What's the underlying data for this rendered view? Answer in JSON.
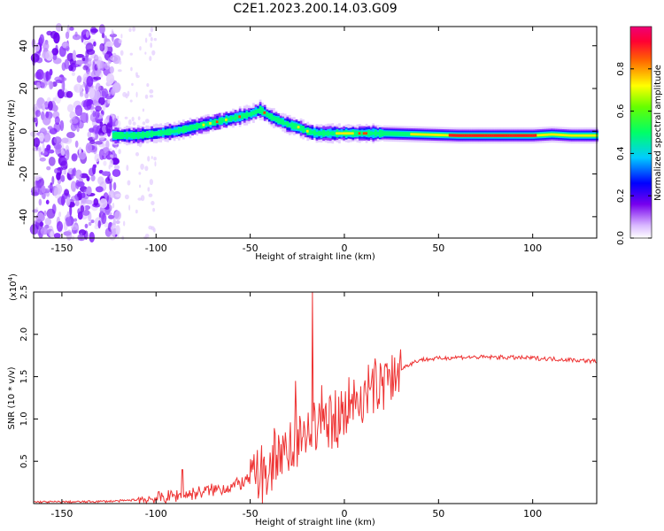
{
  "title": "C2E1.2023.200.14.03.G09",
  "chart_data": [
    {
      "type": "heatmap",
      "xlabel": "Height of straight line (km)",
      "ylabel": "Frequency (Hz)",
      "xlim": [
        -165,
        134
      ],
      "ylim": [
        -50,
        49
      ],
      "x_ticks": [
        -150,
        -100,
        -50,
        0,
        50,
        100
      ],
      "y_ticks": [
        -40,
        -20,
        0,
        20,
        40
      ],
      "ridge": {
        "x": [
          -123,
          -110,
          -100,
          -90,
          -80,
          -70,
          -60,
          -50,
          -45,
          -40,
          -35,
          -30,
          -25,
          -20,
          -15,
          -10,
          0,
          10,
          20,
          40,
          60,
          80,
          100,
          110,
          120,
          134
        ],
        "y": [
          -2,
          -2,
          -1,
          0,
          2,
          4,
          6,
          8,
          10,
          7,
          5,
          3,
          2,
          0,
          -1,
          -1,
          -1,
          -1,
          -1,
          -1.5,
          -2,
          -2,
          -2,
          -1.5,
          -2,
          -2
        ]
      },
      "colorbar": {
        "label": "Normalized spectral amplitude",
        "range": [
          0,
          1
        ],
        "ticks": [
          0.0,
          0.2,
          0.4,
          0.6,
          0.8
        ]
      }
    },
    {
      "type": "line",
      "xlabel": "Height of straight line (km)",
      "ylabel": "SNR (10 * v/v)",
      "scale_label": "(x10",
      "scale_exp": "4",
      "xlim": [
        -165,
        134
      ],
      "ylim": [
        0,
        2.5
      ],
      "x_ticks": [
        -150,
        -100,
        -50,
        0,
        50,
        100
      ],
      "y_ticks": [
        0.5,
        1.0,
        1.5,
        2.0,
        2.5
      ],
      "line_color": "#ee3333",
      "envelope": {
        "x": [
          -165,
          -140,
          -120,
          -100,
          -80,
          -60,
          -50,
          -40,
          -30,
          -20,
          -10,
          0,
          10,
          20,
          30,
          40,
          60,
          80,
          100,
          120,
          134
        ],
        "y": [
          0.02,
          0.02,
          0.03,
          0.06,
          0.12,
          0.2,
          0.28,
          0.45,
          0.7,
          0.85,
          1.0,
          1.15,
          1.3,
          1.45,
          1.6,
          1.7,
          1.73,
          1.73,
          1.72,
          1.7,
          1.68
        ]
      },
      "peaks": [
        {
          "x": -17,
          "y": 2.5
        },
        {
          "x": -26,
          "y": 1.45
        },
        {
          "x": -12,
          "y": 1.4
        },
        {
          "x": -8,
          "y": 1.25
        },
        {
          "x": -86,
          "y": 0.4
        }
      ]
    }
  ]
}
